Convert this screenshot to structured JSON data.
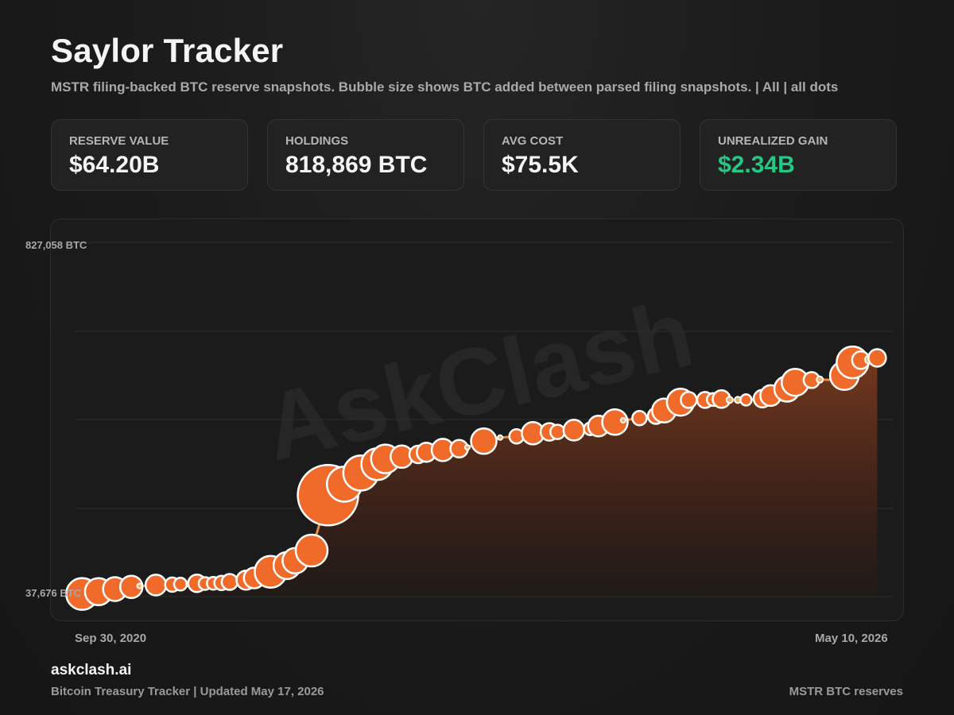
{
  "header": {
    "title": "Saylor Tracker",
    "subtitle": "MSTR filing-backed BTC reserve snapshots. Bubble size shows BTC added between parsed filing snapshots. | All | all dots"
  },
  "cards": [
    {
      "label": "RESERVE VALUE",
      "value": "$64.20B"
    },
    {
      "label": "HOLDINGS",
      "value": "818,869 BTC"
    },
    {
      "label": "AVG COST",
      "value": "$75.5K"
    },
    {
      "label": "UNREALIZED GAIN",
      "value": "$2.34B"
    }
  ],
  "colors": {
    "accent": "#f06a2a",
    "line": "#f08a3c",
    "gain": "#22c985",
    "bubble_stroke": "#ffffff"
  },
  "watermark": "AskClash",
  "chart_data": {
    "type": "scatter",
    "y_axis": {
      "top_label": "827,058 BTC",
      "bottom_label": "37,676 BTC",
      "range": [
        37676,
        827058
      ]
    },
    "x_axis": {
      "start_label": "Sep 30, 2020",
      "end_label": "May 10, 2026"
    },
    "grid": true,
    "area_fill": true,
    "series": [
      {
        "points": [
          [
            0.0,
            37676,
            3
          ],
          [
            0.01,
            42000,
            20
          ],
          [
            0.03,
            47000,
            17
          ],
          [
            0.05,
            53000,
            15
          ],
          [
            0.07,
            58000,
            14
          ],
          [
            0.08,
            60000,
            3
          ],
          [
            0.1,
            62000,
            13
          ],
          [
            0.12,
            63000,
            9
          ],
          [
            0.13,
            64000,
            8
          ],
          [
            0.14,
            64500,
            3
          ],
          [
            0.15,
            66000,
            11
          ],
          [
            0.16,
            65500,
            8
          ],
          [
            0.17,
            66000,
            8
          ],
          [
            0.18,
            67000,
            9
          ],
          [
            0.19,
            69000,
            10
          ],
          [
            0.21,
            73000,
            12
          ],
          [
            0.22,
            78000,
            13
          ],
          [
            0.24,
            92000,
            20
          ],
          [
            0.26,
            106000,
            17
          ],
          [
            0.27,
            117000,
            16
          ],
          [
            0.29,
            140000,
            20
          ],
          [
            0.31,
            265000,
            38
          ],
          [
            0.33,
            290000,
            22
          ],
          [
            0.35,
            315000,
            22
          ],
          [
            0.37,
            335000,
            20
          ],
          [
            0.38,
            347000,
            18
          ],
          [
            0.4,
            352000,
            14
          ],
          [
            0.42,
            357000,
            11
          ],
          [
            0.43,
            362000,
            12
          ],
          [
            0.45,
            367000,
            14
          ],
          [
            0.47,
            370000,
            11
          ],
          [
            0.48,
            373000,
            3
          ],
          [
            0.5,
            387000,
            16
          ],
          [
            0.52,
            395000,
            3
          ],
          [
            0.54,
            398000,
            9
          ],
          [
            0.56,
            405000,
            14
          ],
          [
            0.58,
            408000,
            11
          ],
          [
            0.59,
            408000,
            9
          ],
          [
            0.61,
            412000,
            13
          ],
          [
            0.63,
            415000,
            8
          ],
          [
            0.64,
            421000,
            13
          ],
          [
            0.66,
            430000,
            16
          ],
          [
            0.67,
            434000,
            3
          ],
          [
            0.69,
            439000,
            9
          ],
          [
            0.71,
            444000,
            10
          ],
          [
            0.72,
            456000,
            15
          ],
          [
            0.74,
            475000,
            17
          ],
          [
            0.75,
            480000,
            10
          ],
          [
            0.77,
            480000,
            10
          ],
          [
            0.78,
            481000,
            8
          ],
          [
            0.79,
            482000,
            11
          ],
          [
            0.8,
            480000,
            4
          ],
          [
            0.81,
            480000,
            4
          ],
          [
            0.82,
            480000,
            7
          ],
          [
            0.84,
            483000,
            11
          ],
          [
            0.85,
            490000,
            13
          ],
          [
            0.87,
            505000,
            16
          ],
          [
            0.88,
            520000,
            17
          ],
          [
            0.9,
            525000,
            10
          ],
          [
            0.91,
            526000,
            4
          ],
          [
            0.93,
            525000,
            3
          ],
          [
            0.94,
            535000,
            18
          ],
          [
            0.95,
            565000,
            20
          ],
          [
            0.96,
            570000,
            11
          ],
          [
            0.97,
            571000,
            5
          ],
          [
            0.98,
            575000,
            11
          ]
        ]
      }
    ]
  },
  "footer": {
    "brand": "askclash.ai",
    "left": "Bitcoin Treasury Tracker | Updated May 17, 2026",
    "right": "MSTR BTC reserves"
  }
}
